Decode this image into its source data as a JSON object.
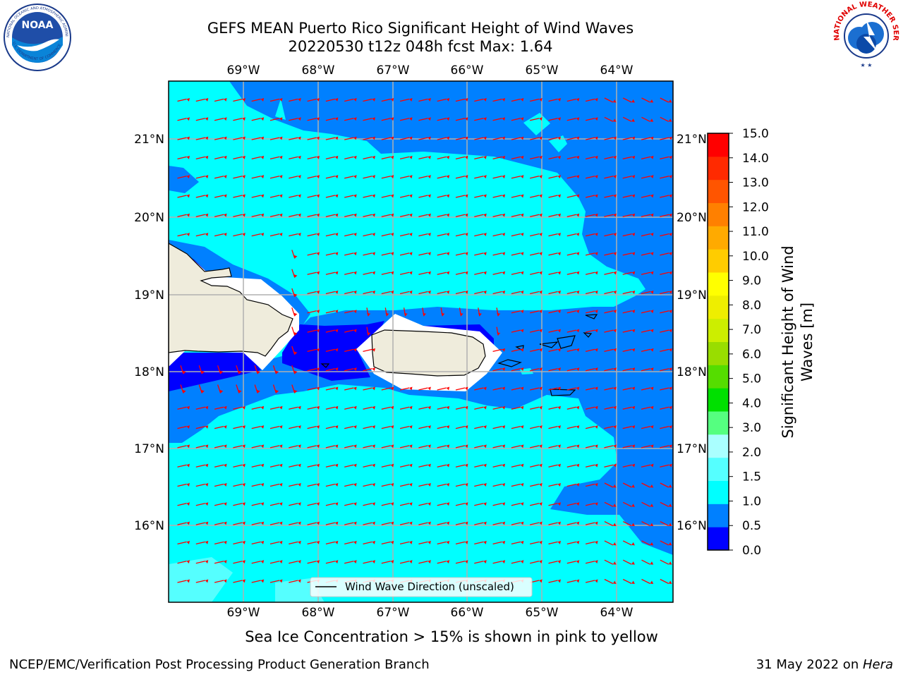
{
  "header": {
    "title_line1": "GEFS MEAN Puerto Rico Significant Height of Wind Waves",
    "title_line2": "20220530 t12z 048h fcst   Max: 1.64"
  },
  "logos": {
    "left": {
      "icon": "noaa-logo",
      "text": "NOAA",
      "ring_text": "NATIONAL OCEANIC AND ATMOSPHERIC ADMINISTRATION · U.S. DEPARTMENT OF COMMERCE"
    },
    "right": {
      "icon": "nws-logo",
      "ring_text": "NATIONAL WEATHER SERVICE"
    }
  },
  "map": {
    "lon_labels": [
      "69°W",
      "68°W",
      "67°W",
      "66°W",
      "65°W",
      "64°W"
    ],
    "lat_labels": [
      "21°N",
      "20°N",
      "19°N",
      "18°N",
      "17°N",
      "16°N"
    ],
    "legend_label": "Wind Wave Direction (unscaled)",
    "colors": {
      "band_0_0_5": "#0000ff",
      "band_0_5_1": "#0080ff",
      "band_1_1_5": "#00ffff",
      "band_1_5_2": "#55ffff",
      "land": "#efecdc",
      "arrow": "#ff0000",
      "grid": "#b0b0b0"
    }
  },
  "colorbar": {
    "label": "Significant Height of Wind Waves [m]",
    "ticks": [
      "15.0",
      "14.0",
      "13.0",
      "12.0",
      "11.0",
      "10.0",
      "9.0",
      "8.0",
      "7.0",
      "6.0",
      "5.0",
      "4.0",
      "3.0",
      "2.0",
      "1.5",
      "1.0",
      "0.5",
      "0.0"
    ],
    "colors_bottom_to_top": [
      "#0000ff",
      "#0080ff",
      "#00ffff",
      "#55ffff",
      "#aaffff",
      "#55ff80",
      "#00e000",
      "#55dd00",
      "#99dd00",
      "#ccee00",
      "#eeee00",
      "#ffff00",
      "#ffcc00",
      "#ffaa00",
      "#ff8000",
      "#ff5500",
      "#ff2a00",
      "#ff0000"
    ]
  },
  "notes": {
    "sea_ice": "Sea Ice Concentration > 15% is shown in pink to yellow"
  },
  "footer": {
    "left": "NCEP/EMC/Verification Post Processing Product Generation Branch",
    "right_prefix": "31 May 2022 on ",
    "right_host": "Hera"
  }
}
